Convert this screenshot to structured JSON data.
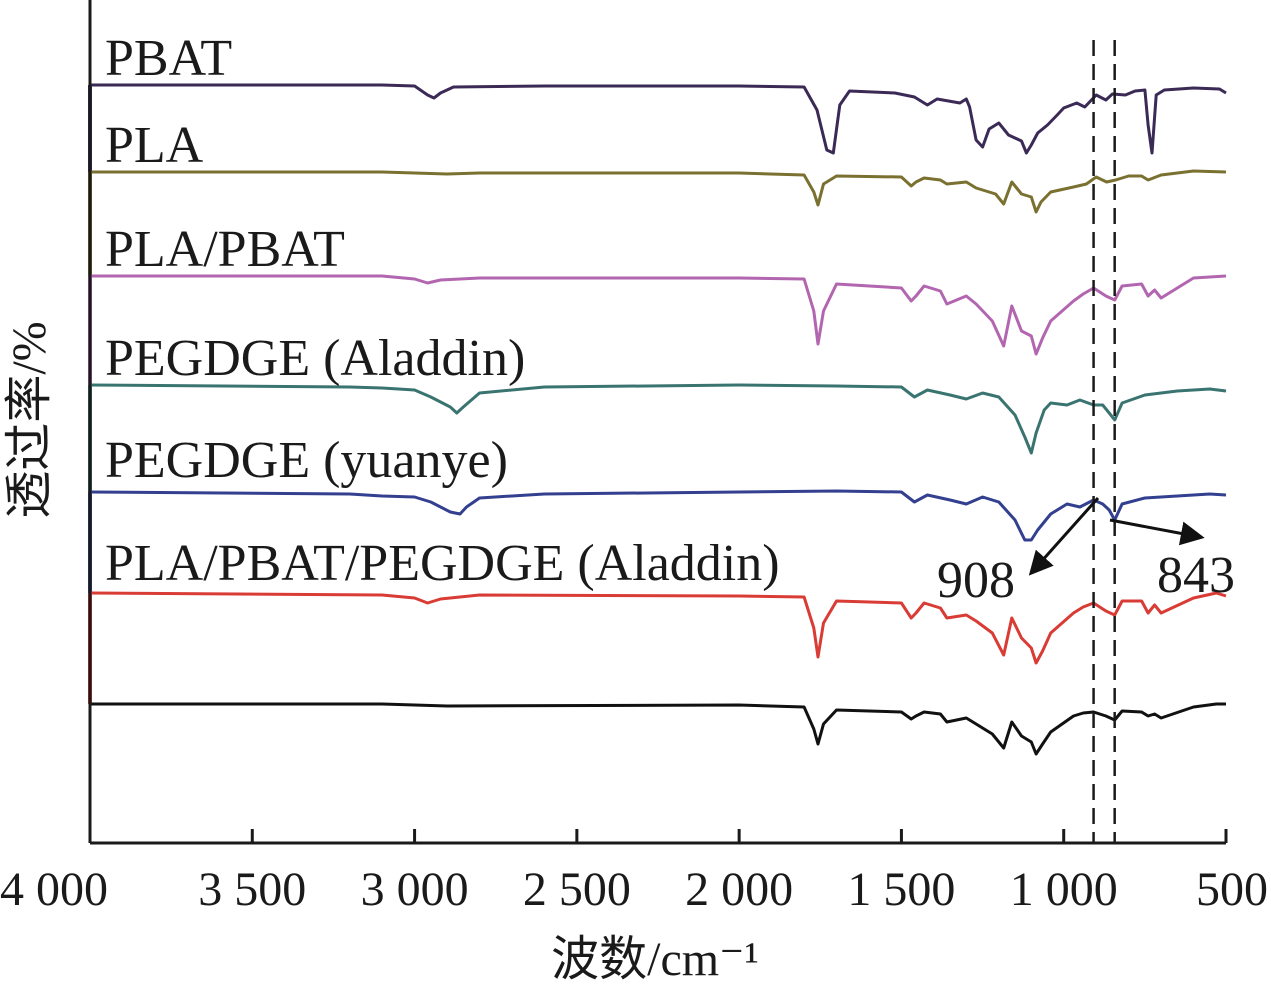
{
  "chart_data": {
    "type": "line",
    "xlabel": "波数/cm⁻¹",
    "ylabel": "透过率/%",
    "xlim": [
      4000,
      500
    ],
    "x_reversed": true,
    "x_ticks": [
      4000,
      3500,
      3000,
      2500,
      2000,
      1500,
      1000,
      500
    ],
    "x_tick_labels": [
      "4 000",
      "3 500",
      "3 000",
      "2 500",
      "2 000",
      "1 500",
      "1 000",
      "500"
    ],
    "y_ticks_shown": false,
    "grid": false,
    "legend": "labels above each curve",
    "reference_lines": [
      {
        "x": 908,
        "style": "dashed"
      },
      {
        "x": 843,
        "style": "dashed"
      }
    ],
    "annotations": [
      {
        "text": "908",
        "x": 908
      },
      {
        "text": "843",
        "x": 843
      }
    ],
    "series": [
      {
        "name": "PBAT",
        "color": "#3b2a55",
        "baseline": 0,
        "points": [
          [
            4000,
            0
          ],
          [
            3100,
            0
          ],
          [
            3000,
            -1
          ],
          [
            2960,
            -10
          ],
          [
            2940,
            -13
          ],
          [
            2920,
            -8
          ],
          [
            2880,
            -2
          ],
          [
            2600,
            -1
          ],
          [
            2000,
            -1
          ],
          [
            1800,
            -2
          ],
          [
            1760,
            -25
          ],
          [
            1730,
            -65
          ],
          [
            1710,
            -68
          ],
          [
            1690,
            -20
          ],
          [
            1660,
            -6
          ],
          [
            1520,
            -8
          ],
          [
            1460,
            -12
          ],
          [
            1420,
            -20
          ],
          [
            1390,
            -14
          ],
          [
            1320,
            -18
          ],
          [
            1300,
            -14
          ],
          [
            1290,
            -22
          ],
          [
            1270,
            -55
          ],
          [
            1250,
            -62
          ],
          [
            1230,
            -44
          ],
          [
            1200,
            -38
          ],
          [
            1170,
            -50
          ],
          [
            1130,
            -56
          ],
          [
            1115,
            -68
          ],
          [
            1100,
            -60
          ],
          [
            1080,
            -48
          ],
          [
            1050,
            -40
          ],
          [
            1020,
            -30
          ],
          [
            1000,
            -23
          ],
          [
            960,
            -18
          ],
          [
            935,
            -22
          ],
          [
            900,
            -10
          ],
          [
            870,
            -15
          ],
          [
            850,
            -9
          ],
          [
            810,
            -10
          ],
          [
            780,
            -6
          ],
          [
            750,
            -5
          ],
          [
            740,
            -40
          ],
          [
            728,
            -68
          ],
          [
            715,
            -10
          ],
          [
            690,
            -5
          ],
          [
            600,
            -3
          ],
          [
            520,
            -4
          ],
          [
            500,
            -8
          ]
        ]
      },
      {
        "name": "PLA",
        "color": "#7a7030",
        "baseline": 0,
        "points": [
          [
            4000,
            0
          ],
          [
            3100,
            0
          ],
          [
            3000,
            -1
          ],
          [
            2900,
            -2
          ],
          [
            2800,
            -1
          ],
          [
            2000,
            -1
          ],
          [
            1800,
            -3
          ],
          [
            1770,
            -20
          ],
          [
            1757,
            -33
          ],
          [
            1740,
            -12
          ],
          [
            1700,
            -4
          ],
          [
            1500,
            -5
          ],
          [
            1470,
            -14
          ],
          [
            1455,
            -10
          ],
          [
            1430,
            -6
          ],
          [
            1380,
            -8
          ],
          [
            1360,
            -12
          ],
          [
            1300,
            -10
          ],
          [
            1270,
            -16
          ],
          [
            1210,
            -22
          ],
          [
            1185,
            -32
          ],
          [
            1160,
            -10
          ],
          [
            1130,
            -22
          ],
          [
            1100,
            -25
          ],
          [
            1085,
            -40
          ],
          [
            1070,
            -30
          ],
          [
            1040,
            -20
          ],
          [
            970,
            -15
          ],
          [
            930,
            -12
          ],
          [
            900,
            -5
          ],
          [
            868,
            -10
          ],
          [
            840,
            -8
          ],
          [
            800,
            -4
          ],
          [
            760,
            -4
          ],
          [
            740,
            -8
          ],
          [
            700,
            -3
          ],
          [
            600,
            1
          ],
          [
            500,
            0
          ]
        ]
      },
      {
        "name": "PLA/PBAT",
        "color": "#b266b0",
        "baseline": 0,
        "points": [
          [
            4000,
            0
          ],
          [
            3100,
            0
          ],
          [
            3000,
            -3
          ],
          [
            2960,
            -7
          ],
          [
            2920,
            -4
          ],
          [
            2800,
            -2
          ],
          [
            2000,
            -2
          ],
          [
            1800,
            -3
          ],
          [
            1770,
            -35
          ],
          [
            1757,
            -68
          ],
          [
            1740,
            -35
          ],
          [
            1700,
            -8
          ],
          [
            1500,
            -12
          ],
          [
            1470,
            -25
          ],
          [
            1455,
            -20
          ],
          [
            1430,
            -10
          ],
          [
            1380,
            -15
          ],
          [
            1360,
            -28
          ],
          [
            1300,
            -20
          ],
          [
            1270,
            -28
          ],
          [
            1220,
            -45
          ],
          [
            1185,
            -70
          ],
          [
            1160,
            -30
          ],
          [
            1130,
            -55
          ],
          [
            1100,
            -60
          ],
          [
            1085,
            -78
          ],
          [
            1065,
            -62
          ],
          [
            1040,
            -45
          ],
          [
            970,
            -25
          ],
          [
            940,
            -18
          ],
          [
            908,
            -12
          ],
          [
            870,
            -20
          ],
          [
            843,
            -24
          ],
          [
            820,
            -10
          ],
          [
            760,
            -8
          ],
          [
            740,
            -20
          ],
          [
            720,
            -14
          ],
          [
            700,
            -22
          ],
          [
            600,
            -2
          ],
          [
            500,
            0
          ]
        ]
      },
      {
        "name": "PEGDGE (Aladdin)",
        "color": "#3a7470",
        "baseline": 0,
        "points": [
          [
            4000,
            0
          ],
          [
            3200,
            -2
          ],
          [
            3100,
            -3
          ],
          [
            3000,
            -5
          ],
          [
            2950,
            -12
          ],
          [
            2890,
            -22
          ],
          [
            2870,
            -28
          ],
          [
            2850,
            -22
          ],
          [
            2800,
            -8
          ],
          [
            2600,
            -2
          ],
          [
            2000,
            0
          ],
          [
            1700,
            -1
          ],
          [
            1500,
            -2
          ],
          [
            1460,
            -12
          ],
          [
            1420,
            -5
          ],
          [
            1350,
            -10
          ],
          [
            1300,
            -14
          ],
          [
            1250,
            -8
          ],
          [
            1200,
            -12
          ],
          [
            1150,
            -30
          ],
          [
            1120,
            -52
          ],
          [
            1100,
            -68
          ],
          [
            1085,
            -48
          ],
          [
            1060,
            -25
          ],
          [
            1040,
            -18
          ],
          [
            990,
            -20
          ],
          [
            950,
            -15
          ],
          [
            908,
            -20
          ],
          [
            880,
            -20
          ],
          [
            860,
            -28
          ],
          [
            843,
            -35
          ],
          [
            820,
            -18
          ],
          [
            750,
            -10
          ],
          [
            650,
            -6
          ],
          [
            550,
            -4
          ],
          [
            500,
            -6
          ]
        ]
      },
      {
        "name": "PEGDGE (yuanye)",
        "color": "#333f8f",
        "baseline": 0,
        "points": [
          [
            4000,
            0
          ],
          [
            3200,
            -2
          ],
          [
            3100,
            -4
          ],
          [
            3000,
            -5
          ],
          [
            2950,
            -10
          ],
          [
            2890,
            -20
          ],
          [
            2860,
            -22
          ],
          [
            2840,
            -15
          ],
          [
            2800,
            -6
          ],
          [
            2600,
            -2
          ],
          [
            2000,
            0
          ],
          [
            1700,
            1
          ],
          [
            1500,
            0
          ],
          [
            1460,
            -10
          ],
          [
            1420,
            -3
          ],
          [
            1350,
            -8
          ],
          [
            1300,
            -12
          ],
          [
            1250,
            -5
          ],
          [
            1200,
            -10
          ],
          [
            1150,
            -28
          ],
          [
            1120,
            -48
          ],
          [
            1100,
            -48
          ],
          [
            1080,
            -38
          ],
          [
            1060,
            -30
          ],
          [
            1040,
            -22
          ],
          [
            990,
            -12
          ],
          [
            950,
            -15
          ],
          [
            908,
            -8
          ],
          [
            880,
            -12
          ],
          [
            860,
            -18
          ],
          [
            843,
            -28
          ],
          [
            820,
            -12
          ],
          [
            750,
            -6
          ],
          [
            650,
            -4
          ],
          [
            550,
            -2
          ],
          [
            500,
            -3
          ]
        ]
      },
      {
        "name": "PLA/PBAT/PEGDGE (Aladdin)",
        "color": "#d93b35",
        "baseline": 0,
        "points": [
          [
            4000,
            0
          ],
          [
            3100,
            -2
          ],
          [
            3000,
            -5
          ],
          [
            2960,
            -10
          ],
          [
            2920,
            -6
          ],
          [
            2800,
            -2
          ],
          [
            2000,
            -3
          ],
          [
            1800,
            -4
          ],
          [
            1770,
            -35
          ],
          [
            1757,
            -64
          ],
          [
            1740,
            -30
          ],
          [
            1700,
            -8
          ],
          [
            1500,
            -10
          ],
          [
            1470,
            -25
          ],
          [
            1455,
            -20
          ],
          [
            1430,
            -10
          ],
          [
            1380,
            -15
          ],
          [
            1360,
            -25
          ],
          [
            1300,
            -22
          ],
          [
            1270,
            -28
          ],
          [
            1220,
            -40
          ],
          [
            1185,
            -62
          ],
          [
            1160,
            -25
          ],
          [
            1130,
            -45
          ],
          [
            1100,
            -55
          ],
          [
            1085,
            -70
          ],
          [
            1065,
            -58
          ],
          [
            1040,
            -40
          ],
          [
            970,
            -20
          ],
          [
            940,
            -14
          ],
          [
            908,
            -10
          ],
          [
            870,
            -18
          ],
          [
            843,
            -22
          ],
          [
            820,
            -8
          ],
          [
            760,
            -8
          ],
          [
            740,
            -20
          ],
          [
            720,
            -12
          ],
          [
            700,
            -20
          ],
          [
            600,
            -5
          ],
          [
            530,
            0
          ],
          [
            500,
            -3
          ]
        ]
      },
      {
        "name": "",
        "color": "#111111",
        "baseline": 0,
        "points": [
          [
            4000,
            0
          ],
          [
            3100,
            0
          ],
          [
            3000,
            -1
          ],
          [
            2900,
            -2
          ],
          [
            2000,
            -1
          ],
          [
            1800,
            -3
          ],
          [
            1770,
            -25
          ],
          [
            1757,
            -40
          ],
          [
            1740,
            -20
          ],
          [
            1700,
            -6
          ],
          [
            1500,
            -8
          ],
          [
            1470,
            -15
          ],
          [
            1455,
            -12
          ],
          [
            1430,
            -8
          ],
          [
            1380,
            -10
          ],
          [
            1360,
            -18
          ],
          [
            1300,
            -14
          ],
          [
            1270,
            -20
          ],
          [
            1220,
            -30
          ],
          [
            1185,
            -44
          ],
          [
            1160,
            -18
          ],
          [
            1130,
            -32
          ],
          [
            1100,
            -38
          ],
          [
            1085,
            -50
          ],
          [
            1065,
            -40
          ],
          [
            1040,
            -28
          ],
          [
            970,
            -12
          ],
          [
            940,
            -9
          ],
          [
            908,
            -8
          ],
          [
            870,
            -12
          ],
          [
            843,
            -16
          ],
          [
            820,
            -7
          ],
          [
            760,
            -8
          ],
          [
            740,
            -12
          ],
          [
            720,
            -10
          ],
          [
            700,
            -14
          ],
          [
            600,
            -3
          ],
          [
            530,
            0
          ],
          [
            500,
            0
          ]
        ]
      }
    ]
  }
}
